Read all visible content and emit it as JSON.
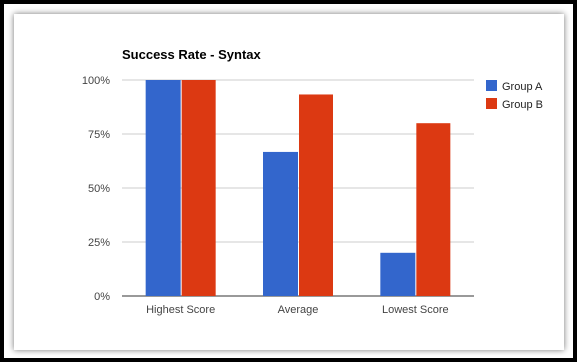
{
  "chart_data": {
    "type": "bar",
    "title": "Success Rate - Syntax",
    "categories": [
      "Highest Score",
      "Average",
      "Lowest Score"
    ],
    "series": [
      {
        "name": "Group A",
        "values": [
          100,
          66.7,
          20
        ],
        "color": "#3366cc"
      },
      {
        "name": "Group B",
        "values": [
          100,
          93.3,
          80
        ],
        "color": "#dc3912"
      }
    ],
    "yticks": [
      "0%",
      "25%",
      "50%",
      "75%",
      "100%"
    ],
    "ylim": [
      0,
      100
    ],
    "grid": true,
    "legend": "right",
    "xlabel": "",
    "ylabel": ""
  }
}
